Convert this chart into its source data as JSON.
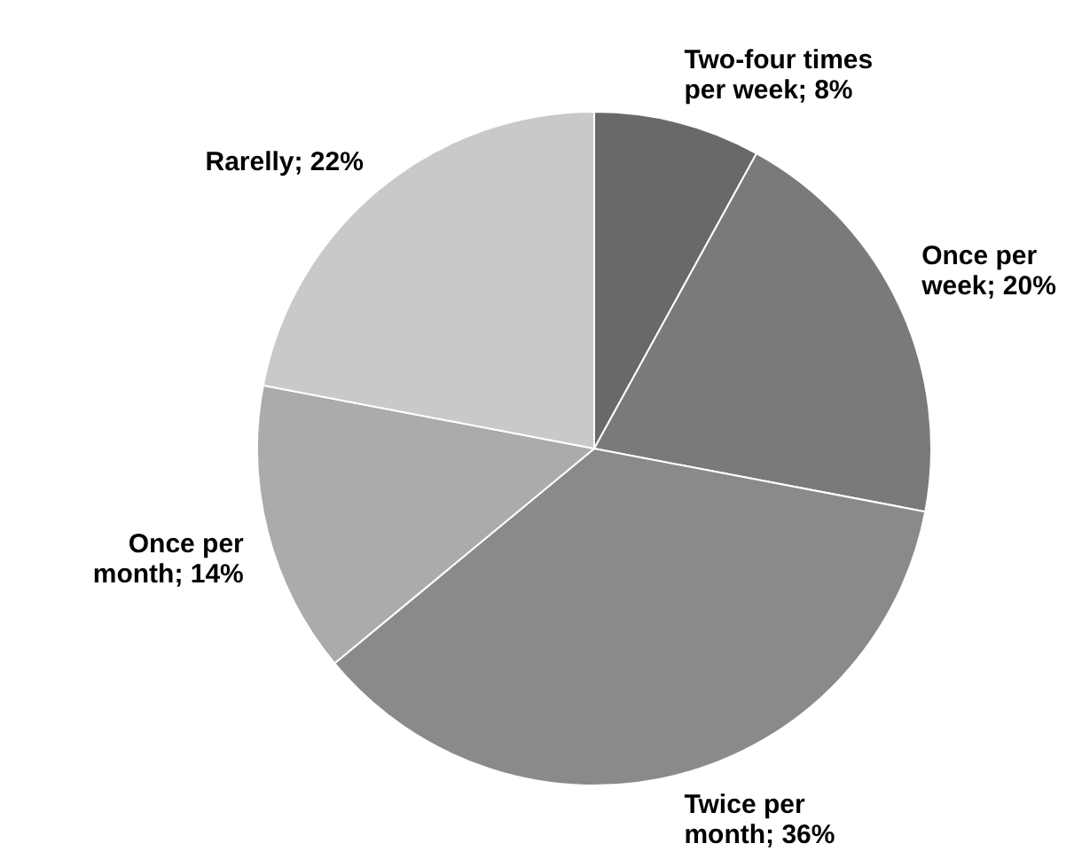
{
  "chart_data": {
    "type": "pie",
    "categories": [
      "Two-four times per week",
      "Once per week",
      "Twice per month",
      "Once per month",
      "Rarelly"
    ],
    "values": [
      8,
      20,
      36,
      14,
      22
    ],
    "colors": [
      "#696969",
      "#7a7a7a",
      "#8a8a8a",
      "#ababab",
      "#c9c9c9"
    ],
    "value_labels": [
      "8%",
      "20%",
      "36%",
      "14%",
      "22%"
    ],
    "legend": false
  }
}
